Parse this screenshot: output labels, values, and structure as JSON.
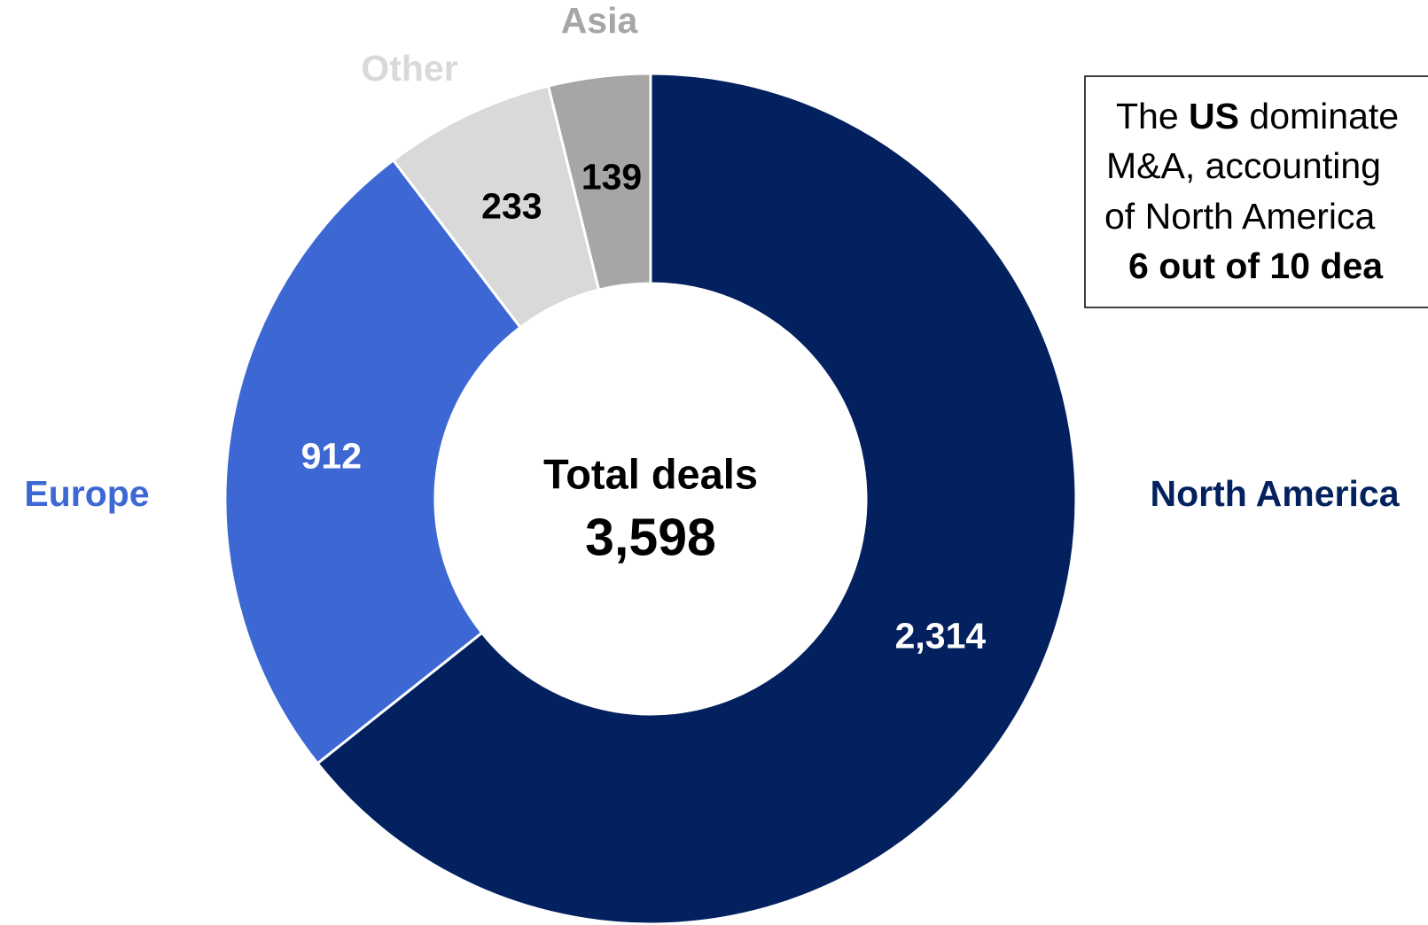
{
  "chart_data": {
    "type": "donut",
    "categories": [
      "North America",
      "Europe",
      "Other",
      "Asia"
    ],
    "values": [
      2314,
      912,
      233,
      139
    ],
    "value_labels": [
      "2,314",
      "912",
      "233",
      "139"
    ],
    "colors": [
      "#03205f",
      "#3d68d4",
      "#d9d9d9",
      "#a6a6a6"
    ],
    "category_label_colors": [
      "#03205f",
      "#3d68d4",
      "#d9d9d9",
      "#a6a6a6"
    ],
    "value_label_colors": [
      "#ffffff",
      "#ffffff",
      "#000000",
      "#000000"
    ],
    "center_title": "Total deals",
    "total": 3598,
    "total_label": "3,598",
    "annotation": [
      [
        {
          "text": "The "
        },
        {
          "text": "US",
          "bold": true
        },
        {
          "text": " dominate"
        }
      ],
      [
        {
          "text": "M&A, accounting"
        }
      ],
      [
        {
          "text": "of North America"
        }
      ],
      [
        {
          "text": "6 out of 10 dea",
          "bold": true
        }
      ]
    ]
  }
}
